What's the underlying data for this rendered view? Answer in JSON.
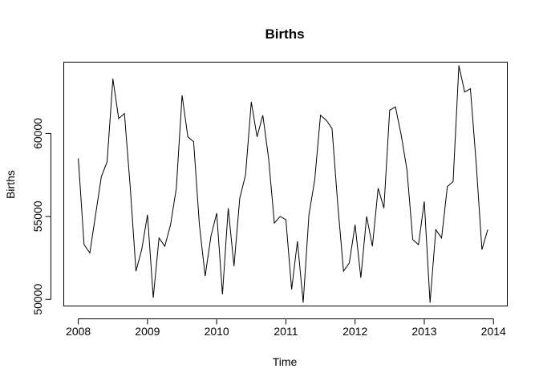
{
  "chart_data": {
    "type": "line",
    "title": "Births",
    "xlabel": "Time",
    "ylabel": "Births",
    "xlim": [
      2007.79,
      2014.2
    ],
    "ylim": [
      49600,
      64300
    ],
    "x_ticks": [
      2008,
      2009,
      2010,
      2011,
      2012,
      2013,
      2014
    ],
    "x_tick_labels": [
      "2008",
      "2009",
      "2010",
      "2011",
      "2012",
      "2013",
      "2014"
    ],
    "y_ticks": [
      50000,
      55000,
      60000
    ],
    "y_tick_labels": [
      "50000",
      "55000",
      "60000"
    ],
    "grid": false,
    "legend": "none",
    "x_start": 2008,
    "x_step": 0.0833333,
    "series": [
      {
        "values": [
          58500,
          53300,
          52800,
          55100,
          57400,
          58300,
          63300,
          60900,
          61200,
          56800,
          51700,
          53000,
          55100,
          50100,
          53700,
          53200,
          54500,
          56700,
          62300,
          59800,
          59500,
          54500,
          51400,
          53800,
          55200,
          50300,
          55500,
          52000,
          56100,
          57500,
          61900,
          59800,
          61100,
          58500,
          54600,
          55000,
          54800,
          50600,
          53500,
          49800,
          55100,
          57200,
          61100,
          60800,
          60300,
          55700,
          51700,
          52200,
          54500,
          51300,
          55000,
          53200,
          56700,
          55500,
          61400,
          61600,
          59900,
          57800,
          53600,
          53300,
          55900,
          49800,
          54200,
          53700,
          56800,
          57100,
          64100,
          62500,
          62700,
          58200,
          53000,
          54200
        ]
      }
    ]
  }
}
